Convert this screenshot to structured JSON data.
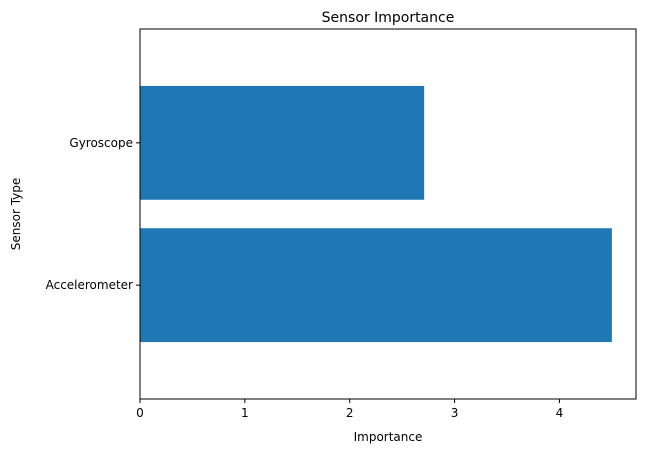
{
  "chart_data": {
    "type": "bar",
    "orientation": "horizontal",
    "title": "Sensor Importance",
    "xlabel": "Importance",
    "ylabel": "Sensor Type",
    "categories": [
      "Accelerometer",
      "Gyroscope"
    ],
    "values": [
      4.5,
      2.71
    ],
    "xlim": [
      0,
      4.73
    ],
    "xticks": [
      0,
      1,
      2,
      3,
      4
    ],
    "grid": false,
    "bar_color": "#1f77b4"
  }
}
